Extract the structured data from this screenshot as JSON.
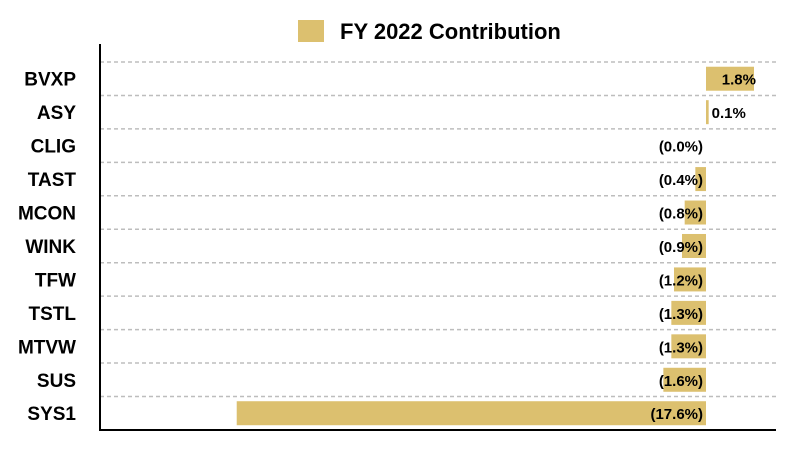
{
  "chart_data": {
    "type": "bar",
    "orientation": "horizontal",
    "legend": {
      "position": "top-center",
      "label": "FY 2022 Contribution",
      "color": "#dcc06f"
    },
    "categories": [
      "BVXP",
      "ASY",
      "CLIG",
      "TAST",
      "MCON",
      "WINK",
      "TFW",
      "TSTL",
      "MTVW",
      "SUS",
      "SYS1"
    ],
    "values": [
      1.8,
      0.1,
      0.0,
      -0.4,
      -0.8,
      -0.9,
      -1.2,
      -1.3,
      -1.3,
      -1.6,
      -17.6
    ],
    "value_labels": [
      "1.8%",
      "0.1%",
      "(0.0%)",
      "(0.4%)",
      "(0.8%)",
      "(0.9%)",
      "(1.2%)",
      "(1.3%)",
      "(1.3%)",
      "(1.6%)",
      "(17.6%)"
    ],
    "xlim": [
      -20,
      2
    ],
    "bar_color": "#dcc06f",
    "grid": "horizontal dashed"
  }
}
